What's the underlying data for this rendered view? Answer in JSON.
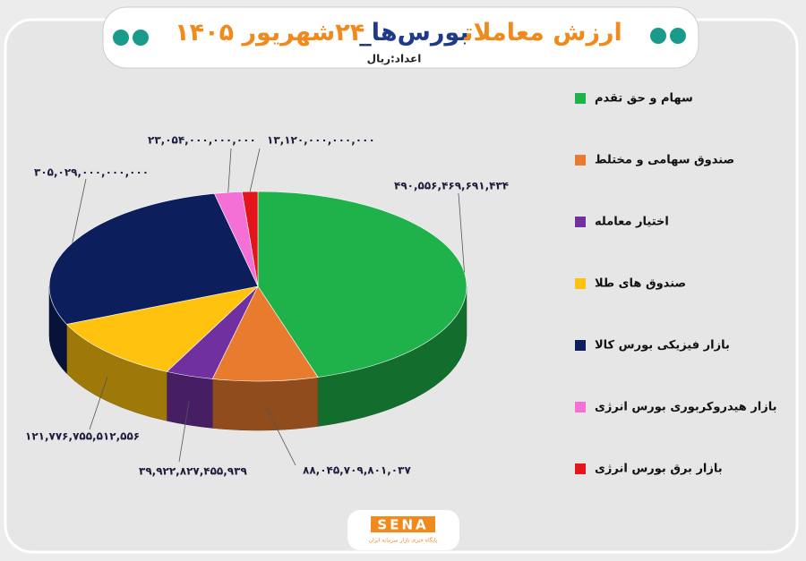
{
  "chart_data": {
    "type": "pie3d",
    "title_parts": [
      {
        "text": "ارزش معاملات",
        "color": "#f18a1c"
      },
      {
        "text": "بورس‌ها_",
        "color": "#1f3a8a"
      },
      {
        "text": "۲۴شهریور ۱۴۰۵",
        "color": "#f18a1c"
      }
    ],
    "subtitle": "اعداد:ریال",
    "categories": [
      "سهام و حق تقدم",
      "صندوق سهامی و مختلط",
      "اختیار معامله",
      "صندوق های طلا",
      "بازار فیزیکی بورس کالا",
      "بازار هیدروکربوری بورس انرژی",
      "بازار برق بورس انرژی"
    ],
    "values": [
      490556469691434,
      88045709801037,
      39922827455939,
      121776755512556,
      305029000000000,
      23054000000000,
      13120000000000
    ],
    "value_labels": [
      "۴۹۰,۵۵۶,۴۶۹,۶۹۱,۴۳۴",
      "۸۸,۰۴۵,۷۰۹,۸۰۱,۰۳۷",
      "۳۹,۹۲۲,۸۲۷,۴۵۵,۹۳۹",
      "۱۲۱,۷۷۶,۷۵۵,۵۱۲,۵۵۶",
      "۳۰۵,۰۲۹,۰۰۰,۰۰۰,۰۰۰",
      "۲۳,۰۵۴,۰۰۰,۰۰۰,۰۰۰",
      "۱۳,۱۲۰,۰۰۰,۰۰۰,۰۰۰"
    ],
    "colors": [
      "#1fb24a",
      "#e97b2f",
      "#7030a0",
      "#ffc20e",
      "#0c1f5c",
      "#f46fd6",
      "#e3141b"
    ],
    "logo": "SENA",
    "logo_caption": "پایگاه خبری بازار سرمایه ایران"
  }
}
